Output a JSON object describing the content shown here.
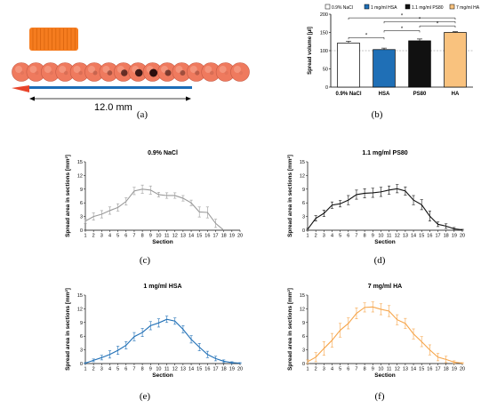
{
  "panel_labels": [
    "(a)",
    "(b)",
    "(c)",
    "(d)",
    "(e)",
    "(f)"
  ],
  "photo": {
    "scale_label": "12.0 mm",
    "section_count": 16,
    "section_spot_intensity": [
      0.05,
      0.05,
      0.05,
      0.1,
      0.1,
      0.2,
      0.35,
      0.7,
      0.9,
      1.0,
      0.6,
      0.4,
      0.25,
      0.12,
      0.05,
      0.05
    ],
    "colors": {
      "tissue": "#ef7a5e",
      "plug": "#f57c1f",
      "needle": "#e8442a",
      "scale": "#1b6db8"
    }
  },
  "chart_data": [
    {
      "id": "b",
      "type": "bar",
      "ylabel": "Spread volume [µl]",
      "categories": [
        "0.9% NaCl",
        "HSA",
        "PS80",
        "HA"
      ],
      "legend": [
        "0.9% NaCl",
        "1 mg/ml HSA",
        "1.1 mg/ml PS80",
        "7 mg/ml HA"
      ],
      "legend_position": "top",
      "values": [
        121,
        103,
        127,
        150
      ],
      "errors": [
        5,
        4,
        5,
        2
      ],
      "ylim": [
        0,
        200
      ],
      "yticks": [
        0,
        50,
        100,
        150,
        200
      ],
      "reference_line": 100,
      "colors": [
        "#ffffff",
        "#1f6fb6",
        "#111111",
        "#f9c27e"
      ],
      "significance": [
        "*",
        "*",
        "*",
        "*",
        "*"
      ]
    },
    {
      "id": "c",
      "type": "line",
      "title": "0.9% NaCl",
      "xlabel": "Section",
      "ylabel": "Spread area in sections [mm²]",
      "color": "#9a9a9a",
      "x": [
        1,
        2,
        3,
        4,
        5,
        6,
        7,
        8,
        9,
        10,
        11,
        12,
        13,
        14,
        15,
        16,
        17,
        18
      ],
      "y": [
        2.0,
        3.0,
        3.5,
        4.3,
        5.0,
        6.3,
        8.6,
        9.0,
        8.8,
        7.8,
        7.6,
        7.6,
        7.0,
        6.0,
        4.0,
        3.9,
        1.5,
        0.0
      ],
      "err": [
        0.5,
        0.8,
        0.8,
        0.8,
        0.8,
        0.8,
        0.8,
        0.9,
        0.9,
        0.5,
        0.6,
        0.6,
        0.6,
        0.6,
        1.1,
        1.2,
        0.9,
        0.0
      ],
      "xlim": [
        1,
        20
      ],
      "ylim": [
        0,
        15
      ],
      "yticks": [
        0,
        3,
        6,
        9,
        12,
        15
      ],
      "xticks": [
        1,
        2,
        3,
        4,
        5,
        6,
        7,
        8,
        9,
        10,
        11,
        12,
        13,
        14,
        15,
        16,
        17,
        18,
        19,
        20
      ]
    },
    {
      "id": "d",
      "type": "line",
      "title": "1.1 mg/ml PS80",
      "xlabel": "Section",
      "ylabel": "Spread area in sections [mm²]",
      "color": "#111111",
      "x": [
        1,
        2,
        3,
        4,
        5,
        6,
        7,
        8,
        9,
        10,
        11,
        12,
        13,
        14,
        15,
        16,
        17,
        18,
        19,
        20
      ],
      "y": [
        0.2,
        2.6,
        3.7,
        5.5,
        5.8,
        6.6,
        7.8,
        8.1,
        8.2,
        8.4,
        8.8,
        9.1,
        8.6,
        6.6,
        5.6,
        3.1,
        1.3,
        0.9,
        0.3,
        0.1
      ],
      "err": [
        0.2,
        0.6,
        0.7,
        0.7,
        0.7,
        1.0,
        1.0,
        1.0,
        1.0,
        1.0,
        0.9,
        0.9,
        0.9,
        1.0,
        1.1,
        1.1,
        0.5,
        0.5,
        0.3,
        0.1
      ],
      "xlim": [
        1,
        20
      ],
      "ylim": [
        0,
        15
      ],
      "yticks": [
        0,
        3,
        6,
        9,
        12,
        15
      ],
      "xticks": [
        1,
        2,
        3,
        4,
        5,
        6,
        7,
        8,
        9,
        10,
        11,
        12,
        13,
        14,
        15,
        16,
        17,
        18,
        19,
        20
      ]
    },
    {
      "id": "e",
      "type": "line",
      "title": "1 mg/ml HSA",
      "xlabel": "Section",
      "ylabel": "Spread area in sections [mm²]",
      "color": "#1f6fb6",
      "x": [
        1,
        2,
        3,
        4,
        5,
        6,
        7,
        8,
        9,
        10,
        11,
        12,
        13,
        14,
        15,
        16,
        17,
        18,
        19,
        20
      ],
      "y": [
        0.1,
        0.7,
        1.3,
        2.0,
        2.9,
        4.0,
        5.9,
        6.8,
        8.3,
        8.9,
        9.7,
        9.3,
        7.5,
        5.3,
        3.6,
        2.0,
        1.1,
        0.5,
        0.2,
        0.1
      ],
      "err": [
        0.1,
        0.3,
        0.5,
        0.8,
        0.9,
        0.8,
        0.9,
        0.9,
        0.9,
        0.9,
        0.7,
        0.7,
        0.8,
        0.8,
        0.8,
        0.7,
        0.5,
        0.3,
        0.2,
        0.1
      ],
      "xlim": [
        1,
        20
      ],
      "ylim": [
        0,
        15
      ],
      "yticks": [
        0,
        3,
        6,
        9,
        12,
        15
      ],
      "xticks": [
        1,
        2,
        3,
        4,
        5,
        6,
        7,
        8,
        9,
        10,
        11,
        12,
        13,
        14,
        15,
        16,
        17,
        18,
        19,
        20
      ]
    },
    {
      "id": "f",
      "type": "line",
      "title": "7 mg/ml HA",
      "xlabel": "Section",
      "ylabel": "Spread area in sections [mm²]",
      "color": "#f6a54a",
      "x": [
        1,
        2,
        3,
        4,
        5,
        6,
        7,
        8,
        9,
        10,
        11,
        12,
        13,
        14,
        15,
        16,
        17,
        18,
        19,
        20
      ],
      "y": [
        0.4,
        1.4,
        3.3,
        5.1,
        7.3,
        8.8,
        11.0,
        12.3,
        12.4,
        11.9,
        11.5,
        9.6,
        8.8,
        6.5,
        4.8,
        3.0,
        1.4,
        0.9,
        0.3,
        0.1
      ],
      "err": [
        0.4,
        1.0,
        1.5,
        1.5,
        1.5,
        1.2,
        1.2,
        1.0,
        1.1,
        1.2,
        1.2,
        1.1,
        1.1,
        1.1,
        1.1,
        1.1,
        0.8,
        0.7,
        0.3,
        0.1
      ],
      "xlim": [
        1,
        20
      ],
      "ylim": [
        0,
        15
      ],
      "yticks": [
        0,
        3,
        6,
        9,
        12,
        15
      ],
      "xticks": [
        1,
        2,
        3,
        4,
        5,
        6,
        7,
        8,
        9,
        10,
        11,
        12,
        13,
        14,
        15,
        16,
        17,
        18,
        19,
        20
      ]
    }
  ]
}
